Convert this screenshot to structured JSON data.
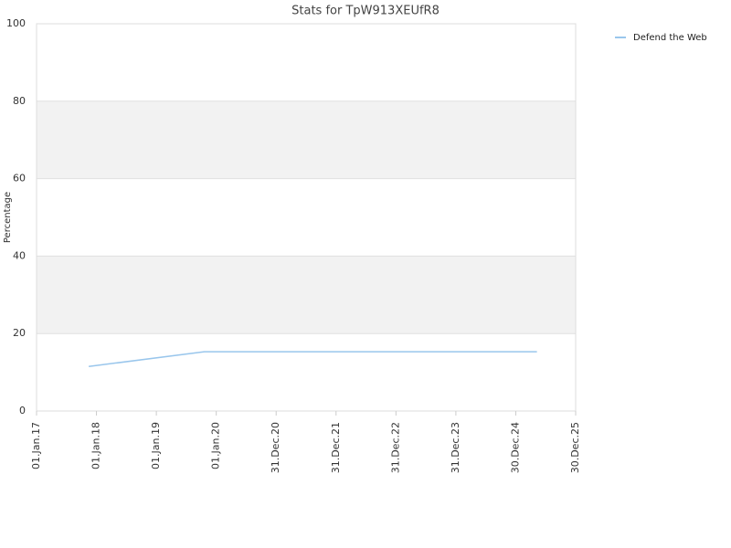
{
  "chart_data": {
    "type": "line",
    "title": "Stats for TpW913XEUfR8",
    "y_label": "Percentage",
    "x": [
      "2017-11-15",
      "2019-10-20",
      "2025-05-08"
    ],
    "series": [
      {
        "name": "Defend the Web",
        "color": "#99c6ec",
        "values": [
          11.5,
          15.3,
          15.3
        ]
      }
    ],
    "xlim": [
      "2017-01-01",
      "2025-12-30"
    ],
    "xticks": [
      {
        "value": "2017-01-01",
        "label": "01.Jan.17"
      },
      {
        "value": "2018-01-01",
        "label": "01.Jan.18"
      },
      {
        "value": "2019-01-01",
        "label": "01.Jan.19"
      },
      {
        "value": "2020-01-01",
        "label": "01.Jan.20"
      },
      {
        "value": "2020-12-31",
        "label": "31.Dec.20"
      },
      {
        "value": "2021-12-31",
        "label": "31.Dec.21"
      },
      {
        "value": "2022-12-31",
        "label": "31.Dec.22"
      },
      {
        "value": "2023-12-31",
        "label": "31.Dec.23"
      },
      {
        "value": "2024-12-30",
        "label": "30.Dec.24"
      },
      {
        "value": "2025-12-30",
        "label": "30.Dec.25"
      }
    ],
    "ylim": [
      0,
      100
    ],
    "yticks": [
      0,
      20,
      40,
      60,
      80,
      100
    ],
    "grid": true,
    "legend": "right"
  }
}
